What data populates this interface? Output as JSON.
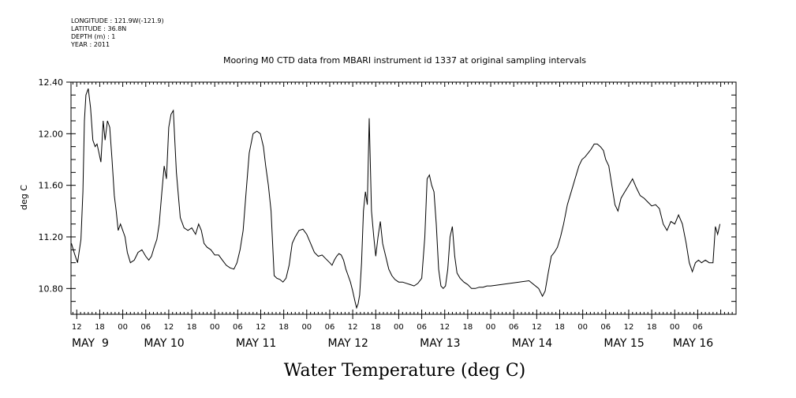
{
  "header": {
    "meta_lines": [
      "LONGITUDE : 121.9W(-121.9)",
      "LATITUDE : 36.8N",
      "DEPTH (m) : 1",
      "YEAR : 2011"
    ]
  },
  "chart_data": {
    "type": "line",
    "title": "Mooring M0 CTD data from MBARI instrument id 1337 at original sampling intervals",
    "xlabel": "Water Temperature (deg C)",
    "ylabel": "deg C",
    "ylim": [
      10.6,
      12.4
    ],
    "y_ticks": [
      "12.40",
      "12.00",
      "11.60",
      "11.20",
      "10.80"
    ],
    "x_unit": "hours since May 9 00:00 (2011)",
    "xlim": [
      10.5,
      184
    ],
    "hour_ticks": [
      {
        "h": 12,
        "label": "12"
      },
      {
        "h": 18,
        "label": "18"
      },
      {
        "h": 24,
        "label": "00"
      },
      {
        "h": 30,
        "label": "06"
      },
      {
        "h": 36,
        "label": "12"
      },
      {
        "h": 42,
        "label": "18"
      },
      {
        "h": 48,
        "label": "00"
      },
      {
        "h": 54,
        "label": "06"
      },
      {
        "h": 60,
        "label": "12"
      },
      {
        "h": 66,
        "label": "18"
      },
      {
        "h": 72,
        "label": "00"
      },
      {
        "h": 78,
        "label": "06"
      },
      {
        "h": 84,
        "label": "12"
      },
      {
        "h": 90,
        "label": "18"
      },
      {
        "h": 96,
        "label": "00"
      },
      {
        "h": 102,
        "label": "06"
      },
      {
        "h": 108,
        "label": "12"
      },
      {
        "h": 114,
        "label": "18"
      },
      {
        "h": 120,
        "label": "00"
      },
      {
        "h": 126,
        "label": "06"
      },
      {
        "h": 132,
        "label": "12"
      },
      {
        "h": 138,
        "label": "18"
      },
      {
        "h": 144,
        "label": "00"
      },
      {
        "h": 150,
        "label": "06"
      },
      {
        "h": 156,
        "label": "12"
      },
      {
        "h": 162,
        "label": "18"
      },
      {
        "h": 168,
        "label": "00"
      },
      {
        "h": 174,
        "label": "06"
      }
    ],
    "day_labels": [
      {
        "h": 10.7,
        "label": "MAY  9"
      },
      {
        "h": 29.5,
        "label": "MAY 10"
      },
      {
        "h": 53.5,
        "label": "MAY 11"
      },
      {
        "h": 77.5,
        "label": "MAY 12"
      },
      {
        "h": 101.5,
        "label": "MAY 13"
      },
      {
        "h": 125.5,
        "label": "MAY 14"
      },
      {
        "h": 149.5,
        "label": "MAY 15"
      },
      {
        "h": 167.5,
        "label": "MAY 16"
      }
    ],
    "series": [
      {
        "x": [
          10.6,
          11.4,
          12.2,
          13.1,
          13.6,
          14.0,
          14.4,
          15.0,
          15.6,
          16.2,
          16.8,
          17.3,
          17.8,
          18.3,
          18.9,
          19.4,
          20.0,
          20.6,
          21.2,
          21.8,
          22.3,
          22.8,
          23.4,
          24.0,
          24.6,
          25.2,
          26.0,
          27.0,
          28.0,
          29.0,
          30.0,
          30.8,
          31.5,
          32.2,
          32.9,
          33.5,
          34.2,
          34.8,
          35.4,
          36.0,
          36.6,
          37.2,
          38.0,
          39.0,
          40.0,
          41.0,
          42.0,
          43.0,
          43.8,
          44.5,
          45.2,
          46.0,
          47.0,
          48.0,
          49.0,
          50.0,
          51.0,
          52.0,
          53.0,
          53.8,
          54.6,
          55.4,
          56.2,
          57.0,
          58.0,
          59.0,
          59.9,
          60.7,
          61.3,
          62.0,
          62.7,
          63.5,
          64.2,
          65.0,
          65.8,
          66.6,
          67.4,
          68.2,
          69.0,
          70.0,
          71.0,
          72.0,
          73.0,
          74.0,
          75.0,
          76.0,
          77.0,
          78.0,
          78.6,
          79.2,
          79.8,
          80.4,
          81.0,
          81.6,
          82.2,
          82.8,
          83.4,
          84.0,
          84.6,
          85.0,
          85.4,
          85.8,
          86.3,
          86.8,
          87.3,
          87.8,
          88.3,
          88.9,
          89.5,
          90.0,
          90.6,
          91.2,
          91.8,
          92.6,
          93.4,
          94.2,
          95.0,
          96.0,
          97.0,
          98.0,
          99.0,
          100.0,
          101.0,
          102.0,
          102.8,
          103.4,
          104.0,
          104.6,
          105.2,
          105.8,
          106.4,
          107.0,
          107.6,
          108.2,
          108.8,
          109.4,
          110.0,
          110.6,
          111.2,
          112.0,
          113.0,
          114.0,
          115.0,
          116.0,
          117.0,
          118.0,
          119.0,
          120.0,
          130.0,
          132.5,
          133.5,
          134.2,
          135.0,
          135.8,
          136.6,
          137.4,
          138.2,
          139.0,
          140.0,
          141.0,
          142.0,
          143.0,
          143.8,
          144.6,
          145.4,
          146.2,
          147.0,
          147.8,
          148.6,
          149.4,
          150.0,
          150.8,
          151.6,
          152.4,
          153.2,
          154.0,
          155.0,
          156.0,
          157.0,
          158.0,
          159.0,
          160.0,
          161.0,
          162.0,
          163.0,
          164.0,
          165.0,
          166.0,
          167.0,
          168.0,
          169.0,
          170.0,
          171.0,
          171.8,
          172.6,
          173.4,
          174.2,
          175.0,
          176.0,
          177.0,
          178.0,
          178.6,
          179.2,
          179.8
        ],
        "values": [
          11.15,
          11.07,
          11.0,
          11.18,
          11.55,
          12.1,
          12.3,
          12.35,
          12.2,
          11.95,
          11.9,
          11.92,
          11.85,
          11.78,
          12.1,
          11.95,
          12.1,
          12.05,
          11.8,
          11.52,
          11.4,
          11.25,
          11.3,
          11.25,
          11.2,
          11.08,
          11.0,
          11.02,
          11.08,
          11.1,
          11.05,
          11.02,
          11.05,
          11.12,
          11.18,
          11.3,
          11.55,
          11.75,
          11.65,
          12.05,
          12.15,
          12.18,
          11.7,
          11.35,
          11.27,
          11.25,
          11.27,
          11.22,
          11.3,
          11.25,
          11.15,
          11.12,
          11.1,
          11.06,
          11.06,
          11.02,
          10.98,
          10.96,
          10.95,
          11.0,
          11.1,
          11.25,
          11.55,
          11.85,
          12.0,
          12.02,
          12.0,
          11.9,
          11.75,
          11.6,
          11.4,
          10.9,
          10.88,
          10.87,
          10.85,
          10.88,
          10.98,
          11.15,
          11.2,
          11.25,
          11.26,
          11.22,
          11.15,
          11.08,
          11.05,
          11.06,
          11.03,
          11.0,
          10.98,
          11.02,
          11.05,
          11.07,
          11.06,
          11.02,
          10.95,
          10.9,
          10.85,
          10.78,
          10.7,
          10.65,
          10.68,
          10.75,
          11.0,
          11.4,
          11.55,
          11.45,
          12.12,
          11.4,
          11.2,
          11.05,
          11.2,
          11.32,
          11.15,
          11.05,
          10.95,
          10.9,
          10.87,
          10.85,
          10.85,
          10.84,
          10.83,
          10.82,
          10.84,
          10.88,
          11.2,
          11.65,
          11.68,
          11.6,
          11.55,
          11.3,
          10.95,
          10.82,
          10.8,
          10.82,
          10.95,
          11.2,
          11.28,
          11.05,
          10.92,
          10.88,
          10.85,
          10.83,
          10.8,
          10.8,
          10.81,
          10.81,
          10.82,
          10.82,
          10.86,
          10.8,
          10.74,
          10.78,
          10.92,
          11.05,
          11.08,
          11.12,
          11.2,
          11.3,
          11.45,
          11.55,
          11.65,
          11.75,
          11.8,
          11.82,
          11.85,
          11.88,
          11.92,
          11.92,
          11.9,
          11.87,
          11.8,
          11.75,
          11.6,
          11.45,
          11.4,
          11.5,
          11.55,
          11.6,
          11.65,
          11.58,
          11.52,
          11.5,
          11.47,
          11.44,
          11.45,
          11.42,
          11.3,
          11.25,
          11.32,
          11.3,
          11.37,
          11.3,
          11.15,
          11.0,
          10.93,
          11.0,
          11.02,
          11.0,
          11.02,
          11.0,
          11.0,
          11.28,
          11.22,
          11.3
        ]
      }
    ],
    "grid": false,
    "legend": "none"
  }
}
